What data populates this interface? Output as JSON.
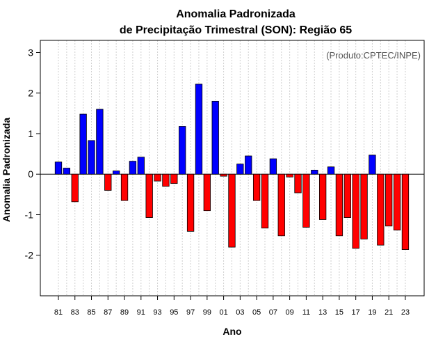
{
  "chart_data": {
    "type": "bar",
    "title": "Anomalia Padronizada",
    "subtitle": "de Precipitação Trimestral (SON): Região 65",
    "xlabel": "Ano",
    "ylabel": "Anomalia Padronizada",
    "credit": "(Produto:CPTEC/INPE)",
    "ylim": [
      -3,
      3.3
    ],
    "yticks": [
      -2,
      -1,
      0,
      1,
      2,
      3
    ],
    "ytick_labels": [
      "-2",
      "-1",
      "0",
      "1",
      "2",
      "3"
    ],
    "grid": "vertical-dotted",
    "categories": [
      "81",
      "82",
      "83",
      "84",
      "85",
      "86",
      "87",
      "88",
      "89",
      "90",
      "91",
      "92",
      "93",
      "94",
      "95",
      "96",
      "97",
      "98",
      "99",
      "00",
      "01",
      "02",
      "03",
      "04",
      "05",
      "06",
      "07",
      "08",
      "09",
      "10",
      "11",
      "12",
      "13",
      "14",
      "15",
      "16",
      "17",
      "18",
      "19",
      "20",
      "21",
      "22",
      "23"
    ],
    "xtick_labels": [
      "81",
      "83",
      "85",
      "87",
      "89",
      "91",
      "93",
      "95",
      "97",
      "99",
      "01",
      "03",
      "05",
      "07",
      "09",
      "11",
      "13",
      "15",
      "17",
      "19",
      "21",
      "23"
    ],
    "values": [
      0.3,
      0.15,
      -0.68,
      1.48,
      0.83,
      1.6,
      -0.4,
      0.08,
      -0.65,
      0.32,
      0.42,
      -1.07,
      -0.17,
      -0.3,
      -0.23,
      1.18,
      -1.41,
      2.22,
      -0.9,
      1.8,
      -0.05,
      -1.8,
      0.25,
      0.45,
      -0.65,
      -1.33,
      0.38,
      -1.52,
      -0.07,
      -0.46,
      -1.31,
      0.1,
      -1.12,
      0.18,
      -1.52,
      -1.07,
      -1.83,
      -1.6,
      0.47,
      -1.75,
      -1.28,
      -1.38,
      -1.86
    ],
    "colors": {
      "positive": "#0000ff",
      "negative": "#ff0000"
    }
  }
}
